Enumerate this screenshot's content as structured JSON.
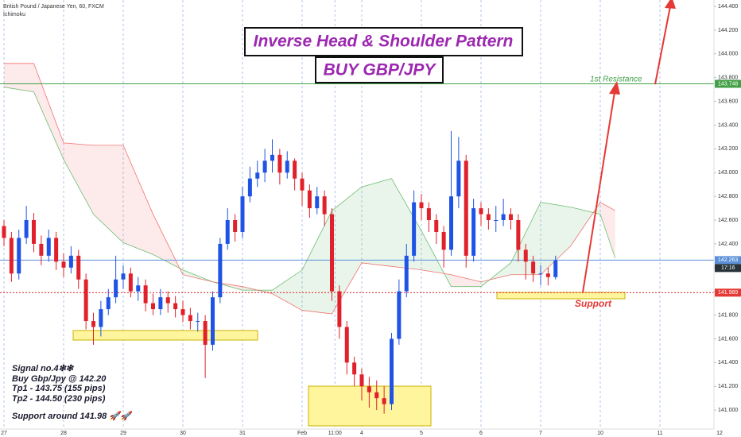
{
  "chart_data": {
    "type": "candlestick",
    "header": "British Pound / Japanese Yen, 60, FXCM",
    "indicator": "Ichimoku",
    "x": [
      0,
      0.125,
      0.25,
      0.375,
      0.5,
      0.625,
      0.75,
      0.875,
      1,
      1.125,
      1.25,
      1.375,
      1.5,
      1.625,
      1.75,
      1.875,
      2,
      2.125,
      2.25,
      2.375,
      2.5,
      2.625,
      2.75,
      2.875,
      3,
      3.125,
      3.25,
      3.375,
      3.5,
      3.625,
      3.75,
      3.875,
      4,
      4.125,
      4.25,
      4.375,
      4.5,
      4.625,
      4.75,
      4.875,
      5,
      5.125,
      5.25,
      5.375,
      5.5,
      5.625,
      5.75,
      5.875,
      6,
      6.125,
      6.25,
      6.375,
      6.5,
      6.625,
      6.75,
      6.875,
      7,
      7.125,
      7.25,
      7.375,
      7.5,
      7.625,
      7.75,
      7.875,
      8,
      8.125,
      8.25,
      8.375,
      8.5,
      8.625,
      8.75,
      8.875,
      9,
      9.125,
      9.25
    ],
    "open": [
      142.55,
      142.45,
      142.15,
      142.45,
      142.6,
      142.4,
      142.3,
      142.45,
      142.25,
      142.2,
      142.3,
      142.1,
      141.75,
      141.7,
      141.85,
      141.95,
      142.1,
      142.15,
      142.0,
      142.05,
      141.9,
      141.85,
      141.95,
      141.9,
      141.85,
      141.8,
      141.75,
      141.75,
      141.55,
      141.95,
      142.4,
      142.6,
      142.5,
      142.8,
      142.95,
      143.0,
      143.1,
      143.15,
      143.0,
      143.1,
      142.95,
      142.85,
      142.7,
      142.8,
      142.65,
      142.0,
      141.7,
      141.4,
      141.3,
      141.2,
      141.15,
      141.1,
      141.05,
      141.6,
      142.0,
      142.3,
      142.75,
      142.7,
      142.6,
      142.5,
      142.35,
      142.8,
      143.1,
      142.3,
      142.7,
      142.65,
      142.6,
      142.6,
      142.65,
      142.6,
      142.35,
      142.25,
      142.15,
      142.15,
      142.12
    ],
    "high": [
      142.6,
      142.5,
      142.52,
      142.72,
      142.66,
      142.47,
      142.52,
      142.5,
      142.32,
      142.38,
      142.35,
      142.15,
      141.82,
      141.92,
      142.02,
      142.3,
      142.22,
      142.2,
      142.12,
      142.1,
      141.98,
      142.02,
      142.0,
      141.96,
      141.92,
      141.86,
      141.82,
      141.8,
      142.0,
      142.45,
      142.7,
      142.65,
      142.88,
      143.05,
      143.1,
      143.2,
      143.28,
      143.2,
      143.18,
      143.12,
      143.0,
      142.9,
      142.88,
      142.85,
      142.7,
      142.05,
      141.75,
      141.45,
      141.35,
      141.28,
      141.25,
      141.2,
      141.65,
      142.1,
      142.4,
      142.85,
      142.82,
      142.75,
      142.65,
      142.55,
      143.35,
      143.3,
      143.15,
      142.78,
      142.75,
      142.7,
      142.72,
      142.78,
      142.7,
      142.65,
      142.4,
      142.3,
      142.22,
      142.2,
      142.3
    ],
    "low": [
      142.38,
      142.08,
      142.1,
      142.4,
      142.33,
      142.22,
      142.25,
      142.18,
      142.12,
      142.15,
      142.02,
      141.68,
      141.55,
      141.62,
      141.8,
      141.9,
      142.02,
      141.95,
      141.92,
      141.83,
      141.8,
      141.8,
      141.82,
      141.78,
      141.74,
      141.68,
      141.66,
      141.27,
      141.5,
      141.9,
      142.35,
      142.42,
      142.45,
      142.75,
      142.88,
      142.92,
      143.0,
      142.9,
      142.95,
      142.85,
      142.72,
      142.62,
      142.65,
      142.55,
      141.92,
      141.6,
      141.3,
      141.2,
      141.08,
      141.02,
      141.0,
      140.97,
      141.0,
      141.55,
      141.95,
      142.25,
      142.6,
      142.5,
      142.4,
      142.2,
      142.3,
      142.7,
      142.2,
      142.25,
      142.55,
      142.52,
      142.5,
      142.55,
      142.52,
      142.25,
      142.1,
      142.08,
      142.05,
      142.05,
      142.1
    ],
    "close": [
      142.45,
      142.15,
      142.45,
      142.6,
      142.4,
      142.3,
      142.45,
      142.25,
      142.2,
      142.3,
      142.1,
      141.75,
      141.7,
      141.85,
      141.95,
      142.1,
      142.15,
      142.0,
      142.05,
      141.9,
      141.85,
      141.95,
      141.9,
      141.85,
      141.8,
      141.75,
      141.75,
      141.55,
      141.95,
      142.4,
      142.6,
      142.5,
      142.8,
      142.95,
      143.0,
      143.1,
      143.15,
      143.0,
      143.1,
      142.95,
      142.85,
      142.7,
      142.8,
      142.65,
      142.0,
      141.7,
      141.4,
      141.3,
      141.2,
      141.15,
      141.1,
      141.05,
      141.6,
      142.0,
      142.3,
      142.75,
      142.7,
      142.6,
      142.5,
      142.35,
      142.8,
      143.1,
      142.3,
      142.7,
      142.65,
      142.6,
      142.6,
      142.65,
      142.6,
      142.35,
      142.25,
      142.15,
      142.15,
      142.12,
      142.26
    ],
    "up_color": "#1e53e5",
    "down_color": "#e0202a",
    "cloud": {
      "x": [
        0,
        0.5,
        1,
        1.5,
        2,
        2.5,
        3,
        3.5,
        4,
        4.5,
        5,
        5.5,
        6,
        6.5,
        7,
        7.5,
        8,
        8.5,
        9,
        9.5,
        10,
        10.25
      ],
      "span_a": [
        143.72,
        143.68,
        143.11,
        142.65,
        142.41,
        142.31,
        142.18,
        142.08,
        142.01,
        142.01,
        142.18,
        142.68,
        142.88,
        142.95,
        142.51,
        142.04,
        142.04,
        142.24,
        142.75,
        142.71,
        142.65,
        142.28
      ],
      "span_b": [
        143.92,
        143.92,
        143.25,
        143.23,
        143.23,
        142.65,
        142.14,
        142.08,
        142.04,
        141.98,
        141.84,
        141.81,
        142.24,
        142.21,
        142.18,
        142.14,
        142.08,
        142.14,
        142.14,
        142.38,
        142.75,
        142.68
      ],
      "span_a_color": "#4caf50",
      "span_b_color": "#ef5350"
    },
    "levels": [
      {
        "value": 143.748,
        "color": "#43a047",
        "style": "solid"
      },
      {
        "value": 142.263,
        "color": "#5b8fd9",
        "style": "solid"
      },
      {
        "value": 141.989,
        "color": "#e53935",
        "style": "dotted"
      }
    ],
    "countdown": "17:16",
    "xlim": [
      -0.0667,
      12.36
    ],
    "xticks": [
      {
        "value": 0,
        "label": "27"
      },
      {
        "value": 1,
        "label": "28"
      },
      {
        "value": 2,
        "label": "29"
      },
      {
        "value": 3,
        "label": "30"
      },
      {
        "value": 4,
        "label": "31"
      },
      {
        "value": 5,
        "label": "Feb"
      },
      {
        "value": 5.55,
        "label": "11:00"
      },
      {
        "value": 6,
        "label": "4"
      },
      {
        "value": 7,
        "label": "5"
      },
      {
        "value": 8,
        "label": "6"
      },
      {
        "value": 9,
        "label": "7"
      },
      {
        "value": 10,
        "label": "10"
      },
      {
        "value": 11,
        "label": "11"
      },
      {
        "value": 12,
        "label": "12"
      }
    ],
    "ylim": [
      140.84,
      144.454
    ],
    "yticks": [
      {
        "value": 141,
        "label": "141.000"
      },
      {
        "value": 141.2,
        "label": "141.200"
      },
      {
        "value": 141.4,
        "label": "141.400"
      },
      {
        "value": 141.6,
        "label": "141.600"
      },
      {
        "value": 141.8,
        "label": "141.800"
      },
      {
        "value": 142,
        "label": "142.000"
      },
      {
        "value": 142.2,
        "label": "142.200"
      },
      {
        "value": 142.4,
        "label": "142.400"
      },
      {
        "value": 142.6,
        "label": "142.600"
      },
      {
        "value": 142.8,
        "label": "142.800"
      },
      {
        "value": 143,
        "label": "143.000"
      },
      {
        "value": 143.2,
        "label": "143.200"
      },
      {
        "value": 143.4,
        "label": "143.400"
      },
      {
        "value": 143.6,
        "label": "143.600"
      },
      {
        "value": 143.8,
        "label": "143.800"
      },
      {
        "value": 144,
        "label": "144.000"
      },
      {
        "value": 144.2,
        "label": "144.200"
      },
      {
        "value": 144.4,
        "label": "144.400"
      }
    ],
    "grid": true,
    "annotations": {
      "title": "Inverse Head & Shoulder Pattern",
      "subtitle": "BUY GBP/JPY",
      "resistance_label": "1st Resistance",
      "support_label": "Support",
      "signal": [
        "Signal no.4❇❇",
        "Buy Gbp/Jpy @ 142.20",
        "Tp1 - 143.75 (155 pips)",
        "Tp2 - 144.50 (230 pips)",
        "Support around 141.98 🚀🚀"
      ]
    }
  }
}
